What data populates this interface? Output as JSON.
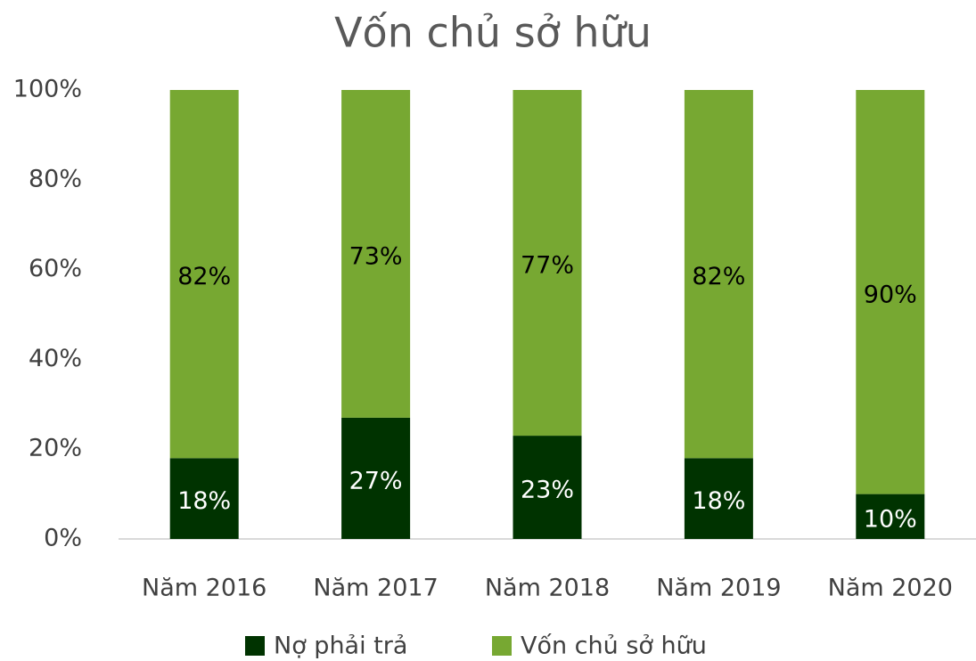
{
  "chart_data": {
    "type": "stacked_bar",
    "title": "Vốn chủ sở hữu",
    "categories": [
      "Năm 2016",
      "Năm 2017",
      "Năm 2018",
      "Năm 2019",
      "Năm 2020"
    ],
    "series": [
      {
        "name": "Nợ phải trả",
        "color": "#003300",
        "values": [
          18,
          27,
          23,
          18,
          10
        ],
        "value_labels": [
          "18%",
          "27%",
          "23%",
          "18%",
          "10%"
        ]
      },
      {
        "name": "Vốn chủ sở hữu",
        "color": "#77a832",
        "values": [
          82,
          73,
          77,
          82,
          90
        ],
        "value_labels": [
          "82%",
          "73%",
          "77%",
          "82%",
          "90%"
        ]
      }
    ],
    "ylim": [
      0,
      100
    ],
    "yticks": [
      {
        "value": 0,
        "label": "0%"
      },
      {
        "value": 20,
        "label": "20%"
      },
      {
        "value": 40,
        "label": "40%"
      },
      {
        "value": 60,
        "label": "60%"
      },
      {
        "value": 80,
        "label": "80%"
      },
      {
        "value": 100,
        "label": "100%"
      }
    ],
    "legend": "bottom"
  }
}
